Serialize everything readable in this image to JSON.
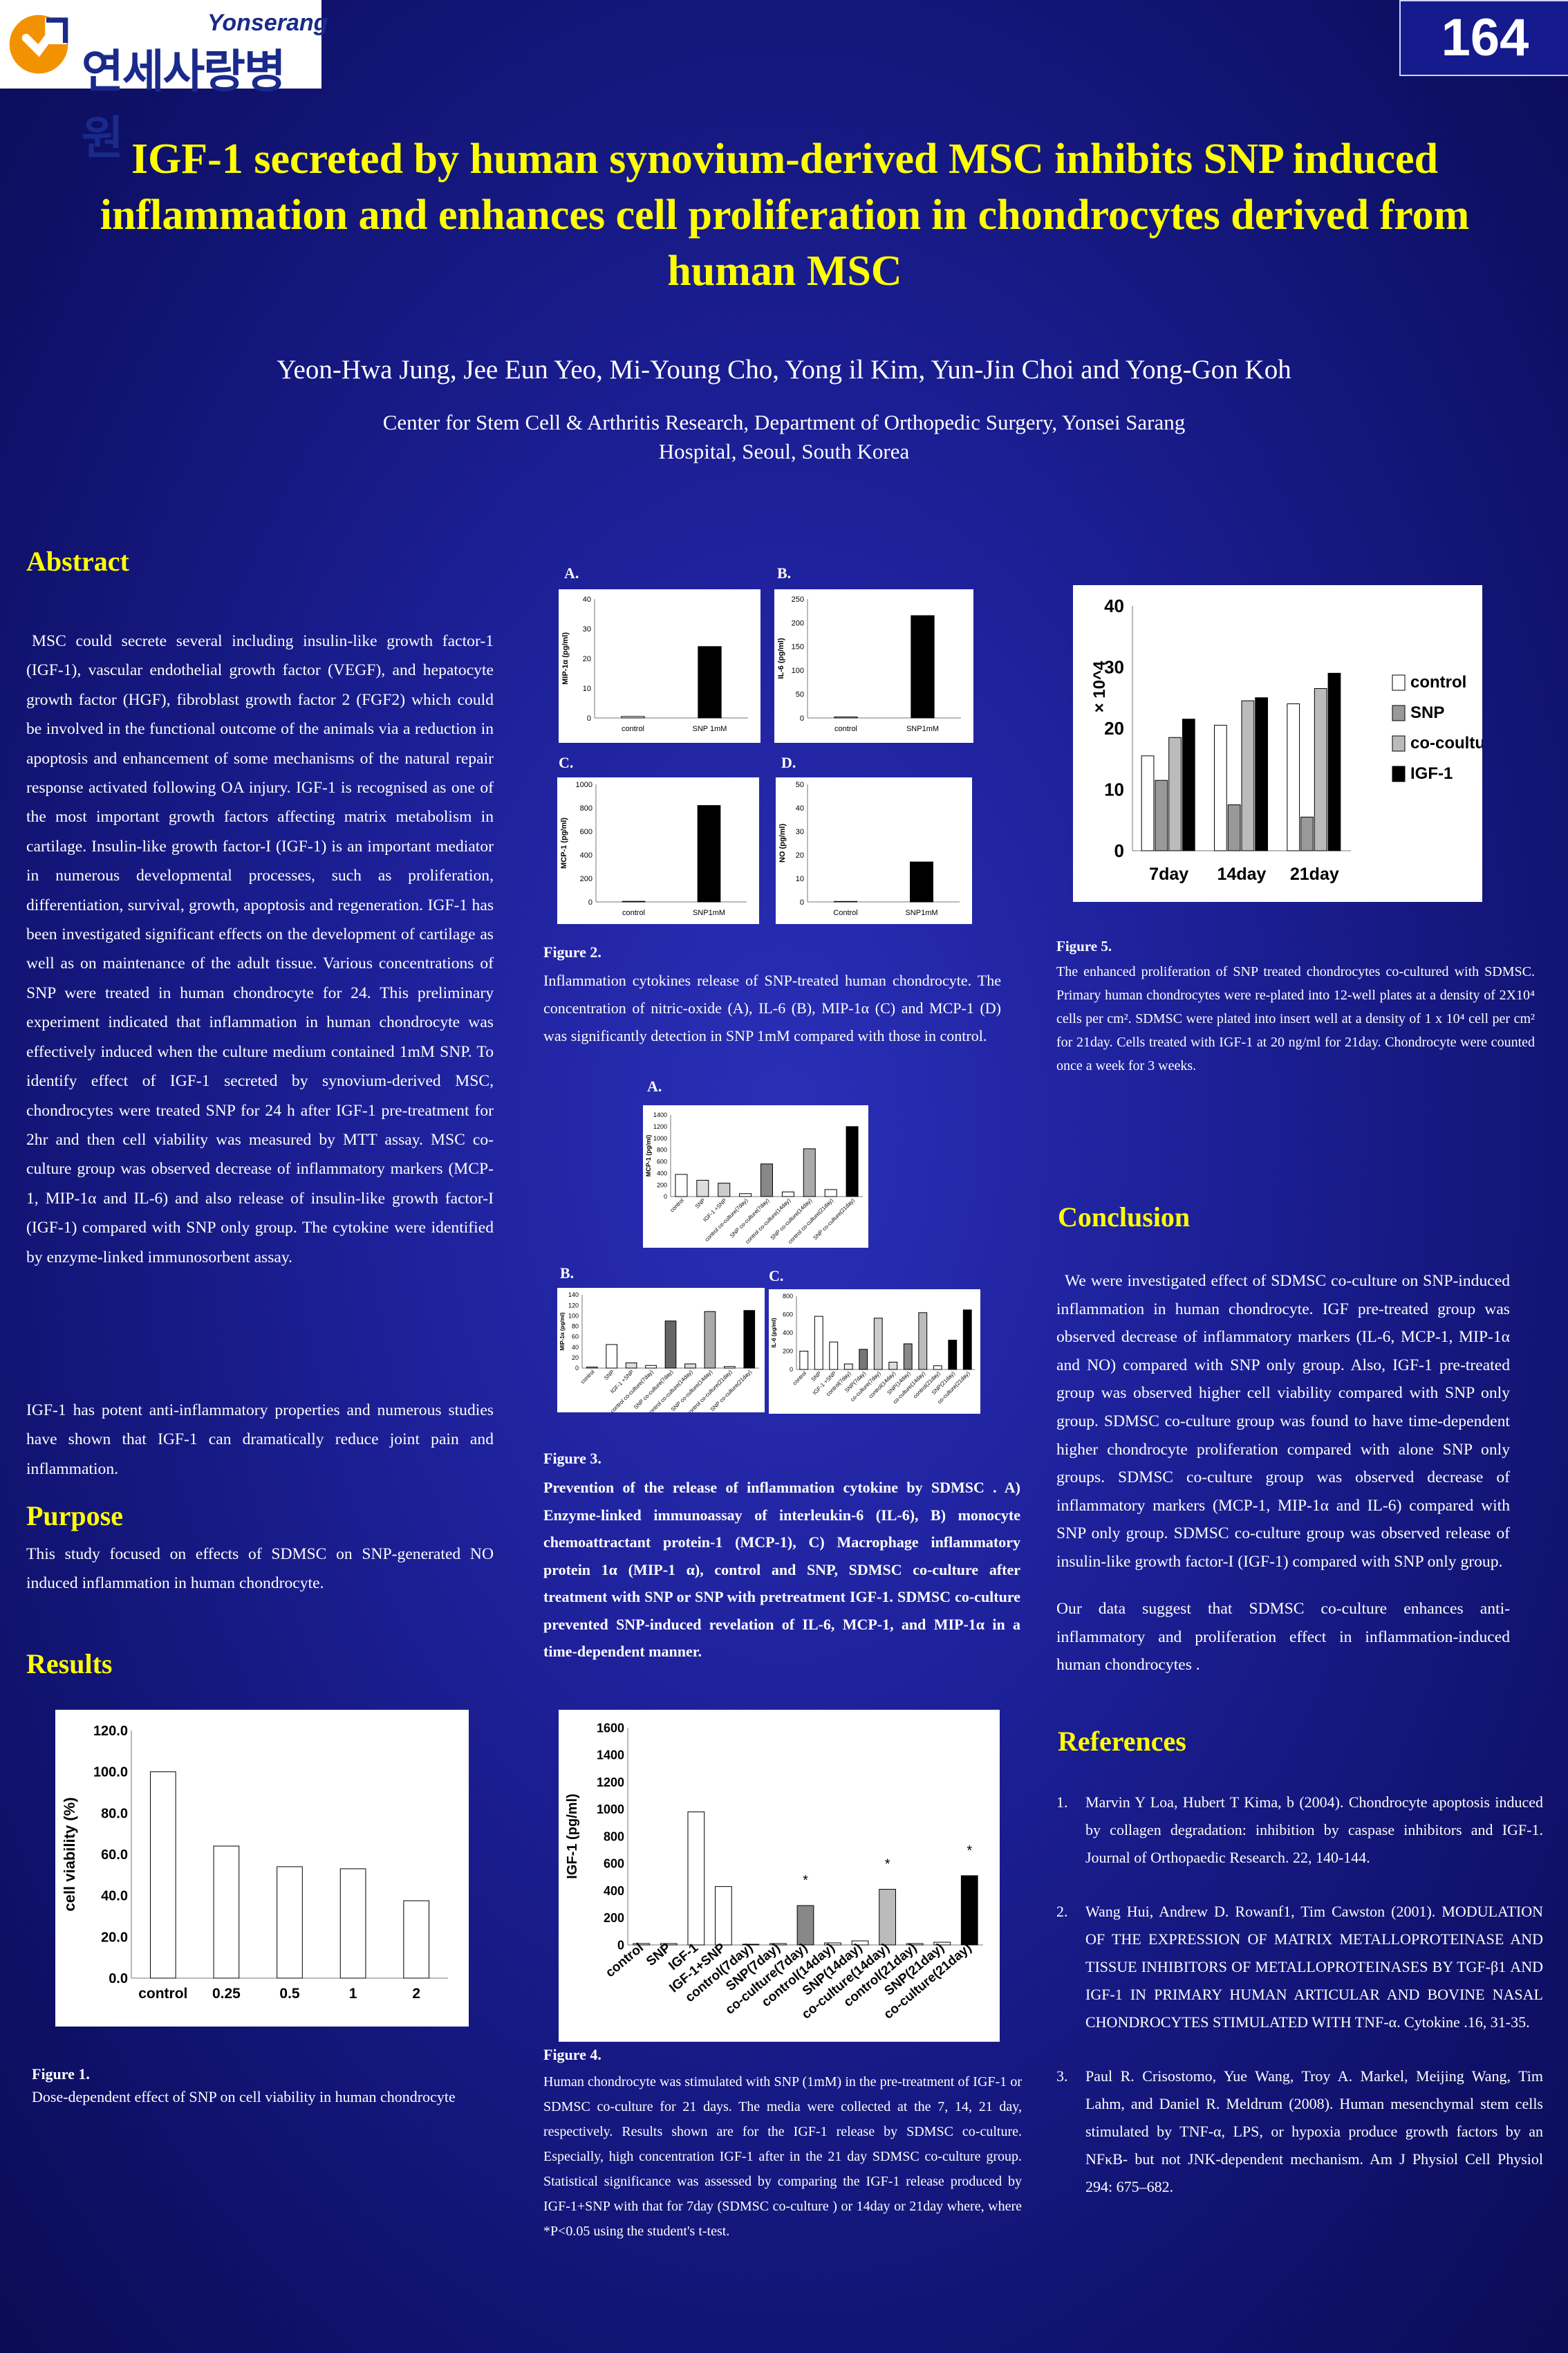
{
  "logo": {
    "en": "Yonserang",
    "ko": "연세사랑병원"
  },
  "poster_number": "164",
  "title": "IGF-1 secreted by human synovium-derived MSC inhibits SNP induced inflammation and enhances cell proliferation in chondrocytes derived from human MSC",
  "authors": "Yeon-Hwa Jung, Jee Eun Yeo, Mi-Young Cho, Yong il Kim, Yun-Jin Choi and Yong-Gon Koh",
  "affiliation_line1": "Center for Stem Cell & Arthritis Research, Department of Orthopedic Surgery, Yonsei Sarang",
  "affiliation_line2": "Hospital, Seoul, South Korea",
  "abstract": {
    "heading": "Abstract",
    "p1": "MSC could secrete several including insulin-like growth factor-1 (IGF-1), vascular endothelial growth factor (VEGF), and hepatocyte growth factor (HGF), fibroblast growth factor 2 (FGF2) which could be involved in the functional outcome of the animals via a reduction in apoptosis and enhancement of some mechanisms of the natural repair response activated following OA injury. IGF-1 is recognised as one of the most important growth factors affecting matrix metabolism in cartilage. Insulin-like growth factor-I (IGF-1) is an important mediator in numerous developmental processes, such as proliferation, differentiation, survival, growth, apoptosis and regeneration. IGF-1 has been investigated significant effects on the development of cartilage as well as on maintenance of the adult tissue. Various concentrations of SNP were treated in human chondrocyte for 24. This preliminary experiment indicated that inflammation in human chondrocyte was effectively induced when the culture medium contained 1mM SNP. To identify effect of IGF-1 secreted by synovium-derived MSC, chondrocytes were treated SNP for 24 h after IGF-1 pre-treatment for 2hr and then cell viability was measured by MTT assay. MSC co-culture group was observed decrease of inflammatory markers (MCP-1, MIP-1α and IL-6) and also release of insulin-like growth factor-I (IGF-1) compared with SNP only group. The cytokine were identified by enzyme-linked immunosorbent assay.",
    "p2": "IGF-1 has potent anti-inflammatory properties and numerous studies have shown that IGF-1 can dramatically reduce joint pain and inflammation."
  },
  "purpose": {
    "heading": "Purpose",
    "text": "This study focused on effects of SDMSC on SNP-generated NO induced inflammation in human chondrocyte."
  },
  "results": {
    "heading": "Results"
  },
  "conclusion": {
    "heading": "Conclusion",
    "p1": "We were investigated effect of SDMSC co-culture on SNP-induced inflammation in human chondrocyte. IGF pre-treated group was observed decrease of inflammatory markers (IL-6, MCP-1, MIP-1α and NO) compared with SNP only group. Also, IGF-1 pre-treated group was observed higher cell viability compared with SNP only group. SDMSC co-culture group was found to have time-dependent higher chondrocyte proliferation compared with alone SNP only groups. SDMSC co-culture group was observed decrease of inflammatory markers (MCP-1, MIP-1α and IL-6) compared with SNP only group. SDMSC co-culture group was observed release of insulin-like growth factor-I (IGF-1) compared with SNP only group.",
    "p2": "Our data suggest that SDMSC co-culture enhances anti-inflammatory and proliferation effect in inflammation-induced human chondrocytes ."
  },
  "references": {
    "heading": "References",
    "items": [
      {
        "num": "1.",
        "text": "Marvin Y Loa, Hubert T Kima, b (2004). Chondrocyte apoptosis induced by collagen degradation: inhibition by caspase inhibitors and IGF-1. Journal of Orthopaedic Research. 22, 140-144."
      },
      {
        "num": "2.",
        "text": "Wang Hui, Andrew D. Rowanf1, Tim Cawston (2001). MODULATION OF THE EXPRESSION OF MATRIX METALLOPROTEINASE AND TISSUE INHIBITORS OF METALLOPROTEINASES BY TGF-β1 AND IGF-1 IN PRIMARY HUMAN ARTICULAR AND BOVINE NASAL CHONDROCYTES STIMULATED WITH TNF-α. Cytokine .16, 31-35."
      },
      {
        "num": "3.",
        "text": "Paul R. Crisostomo, Yue Wang, Troy A. Markel, Meijing Wang, Tim Lahm, and Daniel R. Meldrum (2008). Human mesenchymal stem cells stimulated by TNF-α, LPS, or hypoxia produce growth factors by an NFκB- but not JNK-dependent mechanism. Am J Physiol Cell Physiol 294: 675–682."
      }
    ]
  },
  "figure1": {
    "label": "Figure 1.",
    "caption": "Dose-dependent effect of SNP on cell viability in human chondrocyte"
  },
  "figure2": {
    "label": "Figure 2.",
    "caption": "Inflammation cytokines release of SNP-treated human chondrocyte. The concentration of nitric-oxide (A), IL-6 (B), MIP-1α (C) and MCP-1 (D) was significantly detection in SNP 1mM compared with those in control.",
    "panel_labels": [
      "A.",
      "B.",
      "C.",
      "D."
    ]
  },
  "figure3": {
    "label": "Figure 3.",
    "caption": "Prevention of the release of inflammation cytokine by SDMSC . A) Enzyme-linked immunoassay of interleukin-6 (IL-6), B) monocyte chemoattractant protein-1 (MCP-1), C) Macrophage inflammatory protein 1α (MIP-1 α), control and SNP, SDMSC co-culture after treatment with SNP or SNP with pretreatment IGF-1. SDMSC co-culture prevented SNP-induced revelation of IL-6, MCP-1, and MIP-1α in a time-dependent manner.",
    "panel_labels": [
      "A.",
      "B.",
      "C."
    ]
  },
  "figure4": {
    "label": "Figure 4.",
    "caption": "Human chondrocyte was stimulated with SNP (1mM) in the pre-treatment of IGF-1 or SDMSC co-culture for 21 days. The media were collected at the 7, 14, 21 day, respectively. Results shown are for the IGF-1 release by SDMSC co-culture. Especially, high concentration IGF-1 after in the 21 day SDMSC co-culture group. Statistical significance was assessed by comparing the IGF-1 release produced by IGF-1+SNP with that for 7day (SDMSC co-culture ) or 14day or 21day where, where *P<0.05 using the student's t-test."
  },
  "figure5": {
    "label": "Figure 5.",
    "caption": "The enhanced proliferation of SNP treated chondrocytes co-cultured with SDMSC. Primary human chondrocytes were re-plated into 12-well plates at a density of 2X10⁴ cells per cm². SDMSC were plated into insert well at a density of 1 x 10⁴ cell per cm² for 21day. Cells treated with IGF-1 at 20 ng/ml for 21day. Chondrocyte were counted once a week for 3 weeks."
  },
  "chart_data": [
    {
      "id": "fig1",
      "type": "bar",
      "ylabel": "cell viability (%)",
      "categories": [
        "control",
        "0.25",
        "0.5",
        "1",
        "2"
      ],
      "values": [
        100,
        64,
        54,
        53,
        37.5
      ],
      "ylim": [
        0,
        120
      ],
      "yticks": [
        "0.0",
        "20.0",
        "40.0",
        "60.0",
        "80.0",
        "100.0",
        "120.0"
      ]
    },
    {
      "id": "fig2A",
      "type": "bar",
      "ylabel": "MIP-1α (pg/ml)",
      "categories": [
        "control",
        "SNP 1mM"
      ],
      "values": [
        0.5,
        24
      ],
      "ylim": [
        0,
        40
      ],
      "yticks": [
        "0",
        "10",
        "20",
        "30",
        "40"
      ]
    },
    {
      "id": "fig2B",
      "type": "bar",
      "ylabel": "IL-6 (pg/ml)",
      "categories": [
        "control",
        "SNP1mM"
      ],
      "values": [
        2,
        215
      ],
      "ylim": [
        0,
        250
      ],
      "yticks": [
        "0",
        "50",
        "100",
        "150",
        "200",
        "250"
      ]
    },
    {
      "id": "fig2C",
      "type": "bar",
      "ylabel": "MCP-1 (pg/ml)",
      "categories": [
        "control",
        "SNP1mM"
      ],
      "values": [
        5,
        820
      ],
      "ylim": [
        0,
        1000
      ],
      "yticks": [
        "0",
        "200",
        "400",
        "600",
        "800",
        "1000"
      ]
    },
    {
      "id": "fig2D",
      "type": "bar",
      "ylabel": "NO (pg/ml)",
      "categories": [
        "Control",
        "SNP1mM"
      ],
      "values": [
        0.2,
        17
      ],
      "ylim": [
        0,
        50
      ],
      "yticks": [
        "0",
        "10",
        "20",
        "30",
        "40",
        "50"
      ]
    },
    {
      "id": "fig3A",
      "type": "bar",
      "ylabel": "MCP-1 (pg/ml)",
      "categories": [
        "control",
        "SNP",
        "IGF-1 +SNP",
        "control co-culture(7day)",
        "SNP co-culture(7day)",
        "control co-culture(14day)",
        "SNP co-culture(14day)",
        "control co-culture(21day)",
        "SNP co-culture(21day)"
      ],
      "values": [
        380,
        280,
        230,
        50,
        560,
        80,
        820,
        120,
        1200
      ],
      "ylim": [
        0,
        1400
      ],
      "yticks": [
        "0",
        "200",
        "400",
        "600",
        "800",
        "1000",
        "1200",
        "1400"
      ]
    },
    {
      "id": "fig3B",
      "type": "bar",
      "ylabel": "MIP-1α (pg/ml)",
      "categories": [
        "control",
        "SNP",
        "IGF-1 +SNP",
        "control co-culture(7day)",
        "SNP co-culture(7day)",
        "control co-culture(14day)",
        "SNP co-culture(14day)",
        "control co-culture(21day)",
        "SNP co-culture(21day)"
      ],
      "values": [
        2,
        45,
        10,
        5,
        90,
        8,
        108,
        3,
        110
      ],
      "ylim": [
        0,
        140
      ],
      "yticks": [
        "0",
        "20",
        "40",
        "60",
        "80",
        "100",
        "120",
        "140"
      ]
    },
    {
      "id": "fig3C",
      "type": "bar",
      "ylabel": "IL-6 (pg/ml)",
      "categories": [
        "control",
        "SNP",
        "IGF-1 +SNP",
        "control(7day)",
        "SNP(7day)",
        "co-culture(7day)",
        "control(14day)",
        "SNP(14day)",
        "co-culture(14day)",
        "control(21day)",
        "SNP(21day)",
        "co-culture(21day)"
      ],
      "values": [
        200,
        580,
        300,
        60,
        220,
        560,
        80,
        280,
        620,
        40,
        320,
        650
      ],
      "ylim": [
        0,
        800
      ],
      "yticks": [
        "0",
        "200",
        "400",
        "600",
        "800"
      ]
    },
    {
      "id": "fig4",
      "type": "bar",
      "ylabel": "IGF-1 (pg/ml)",
      "categories": [
        "control",
        "SNP",
        "IGF-1",
        "IGF-1+SNP",
        "control(7day)",
        "SNP(7day)",
        "co-culture(7day)",
        "control(14day)",
        "SNP(14day)",
        "co-culture(14day)",
        "control(21day)",
        "SNP(21day)",
        "co-culture(21day)"
      ],
      "values": [
        10,
        10,
        980,
        430,
        5,
        10,
        290,
        15,
        30,
        410,
        10,
        20,
        510
      ],
      "ylim": [
        0,
        1600
      ],
      "yticks": [
        "0",
        "200",
        "400",
        "600",
        "800",
        "1000",
        "1200",
        "1400",
        "1600"
      ],
      "annotations": [
        "*",
        "*",
        "*"
      ]
    },
    {
      "id": "fig5",
      "type": "bar",
      "ylabel": "× 10^4",
      "categories": [
        "7day",
        "14day",
        "21day"
      ],
      "series": [
        {
          "name": "control",
          "values": [
            15.5,
            20.5,
            24
          ]
        },
        {
          "name": "SNP",
          "values": [
            11.5,
            7.5,
            5.5
          ]
        },
        {
          "name": "co-coulture",
          "values": [
            18.5,
            24.5,
            26.5
          ]
        },
        {
          "name": "IGF-1",
          "values": [
            21.5,
            25,
            29
          ]
        }
      ],
      "ylim": [
        0,
        40
      ],
      "yticks": [
        "0",
        "10",
        "20",
        "30",
        "40"
      ],
      "legend": "right",
      "colors": [
        "#ffffff",
        "#999999",
        "#bbbbbb",
        "#000000"
      ]
    }
  ]
}
